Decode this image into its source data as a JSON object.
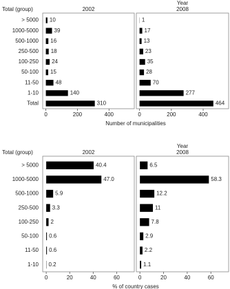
{
  "chart_data": [
    {
      "type": "bar",
      "orientation": "horizontal",
      "facet_title": "Year",
      "y_label": "Total (group)",
      "x_label": "Number of municipalities",
      "categories": [
        "> 5000",
        "1000-5000",
        "500-1000",
        "250-500",
        "100-250",
        "50-100",
        "11-50",
        "1-10",
        "Total"
      ],
      "series": [
        {
          "name": "2002",
          "color": "#000000",
          "values": [
            10,
            39,
            16,
            18,
            24,
            15,
            48,
            140,
            310
          ]
        },
        {
          "name": "2008",
          "color": "#000000",
          "values": [
            1,
            17,
            13,
            23,
            35,
            28,
            70,
            277,
            464
          ]
        }
      ],
      "xlim": [
        -20,
        560
      ],
      "xticks": [
        0,
        200,
        400
      ]
    },
    {
      "type": "bar",
      "orientation": "horizontal",
      "facet_title": "Year",
      "y_label": "Total (group)",
      "x_label": "% of country cases",
      "categories": [
        "> 5000",
        "1000-5000",
        "500-1000",
        "250-500",
        "100-250",
        "50-100",
        "11-50",
        "1-10"
      ],
      "series": [
        {
          "name": "2002",
          "color": "#000000",
          "values": [
            40.4,
            47.0,
            5.9,
            3.3,
            2,
            0.6,
            0.6,
            0.2
          ],
          "value_labels": [
            "40.4",
            "47.0",
            "5.9",
            "3.3",
            "2",
            "0.6",
            "0.6",
            "0.2"
          ]
        },
        {
          "name": "2008",
          "color": "#000000",
          "values": [
            6.5,
            58.3,
            12.2,
            11,
            7.8,
            2.9,
            2.2,
            1.1
          ],
          "value_labels": [
            "6.5",
            "58.3",
            "12.2",
            "11",
            "7.8",
            "2.9",
            "2.2",
            "1.1"
          ]
        }
      ],
      "xlim": [
        -3,
        75
      ],
      "xticks": [
        0,
        20,
        40,
        60
      ]
    }
  ]
}
